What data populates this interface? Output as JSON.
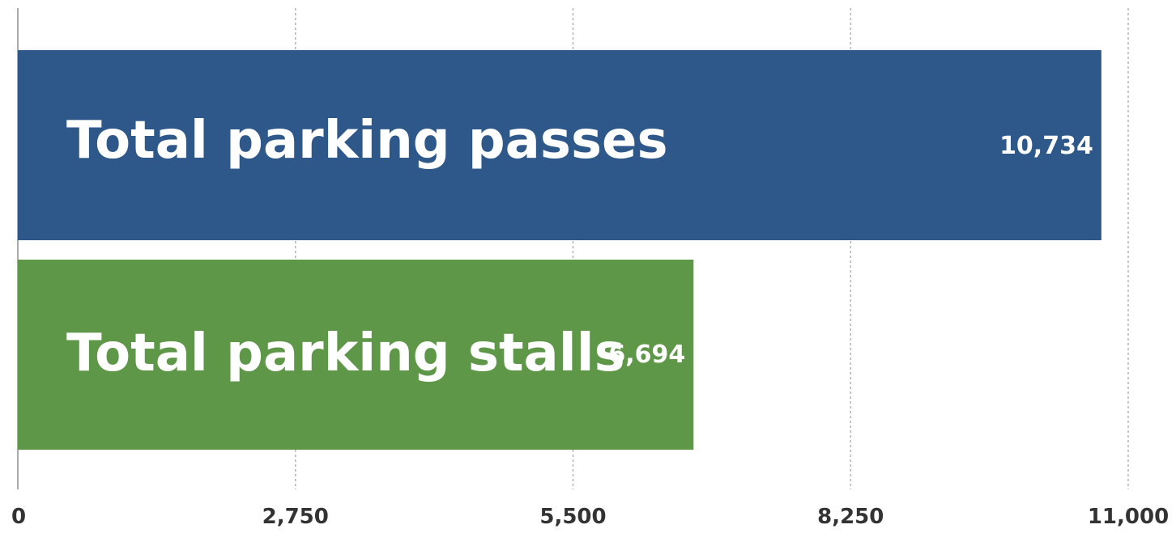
{
  "chart_data": {
    "type": "bar",
    "orientation": "horizontal",
    "categories": [
      "Total parking passes",
      "Total parking stalls"
    ],
    "values": [
      10734,
      6694
    ],
    "value_labels": [
      "10,734",
      "6,694"
    ],
    "colors": [
      "#2e5889",
      "#5e9748"
    ],
    "xlim": [
      0,
      11000
    ],
    "ticks": [
      0,
      2750,
      5500,
      8250,
      11000
    ],
    "tick_labels": [
      "0",
      "2,750",
      "5,500",
      "8,250",
      "11,000"
    ],
    "grid": true,
    "title": "",
    "xlabel": "",
    "ylabel": ""
  }
}
